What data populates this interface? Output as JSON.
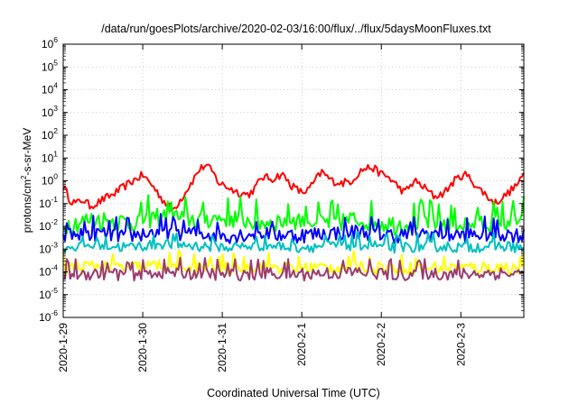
{
  "chart_data": {
    "type": "line",
    "title": "/data/run/goesPlots/archive/2020-02-03/16:00/flux/../flux/5daysMoonFluxes.txt",
    "xlabel": "Coordinated Universal Time (UTC)",
    "ylabel_parts": {
      "pre": "protons/cm",
      "sup": "2",
      "post": "-s-sr-MeV"
    },
    "yscale": "log",
    "ylim": [
      1e-06,
      1000000.0
    ],
    "y_ticks": [
      {
        "exp": "-6",
        "value": 1e-06
      },
      {
        "exp": "-5",
        "value": 1e-05
      },
      {
        "exp": "-4",
        "value": 0.0001
      },
      {
        "exp": "-3",
        "value": 0.001
      },
      {
        "exp": "-2",
        "value": 0.01
      },
      {
        "exp": "-1",
        "value": 0.1
      },
      {
        "exp": "0",
        "value": 1
      },
      {
        "exp": "1",
        "value": 10
      },
      {
        "exp": "2",
        "value": 100
      },
      {
        "exp": "3",
        "value": 1000
      },
      {
        "exp": "4",
        "value": 10000
      },
      {
        "exp": "5",
        "value": 100000
      },
      {
        "exp": "6",
        "value": 1000000
      }
    ],
    "y_tick_base": "10",
    "xlim": [
      "2020-01-29T00:00",
      "2020-02-03T19:00"
    ],
    "x_ticks": [
      "2020-1-29",
      "2020-1-30",
      "2020-1-31",
      "2020-2-1",
      "2020-2-2",
      "2020-2-3"
    ],
    "grid": true,
    "series": [
      {
        "color": "#ff0000",
        "x": [
          "2020-01-29T00:00",
          "2020-01-29T02:00",
          "2020-01-29T04:00",
          "2020-01-29T06:00",
          "2020-01-29T08:00",
          "2020-01-29T10:00",
          "2020-01-29T12:00",
          "2020-01-29T15:00",
          "2020-01-29T18:00",
          "2020-01-29T21:00",
          "2020-01-30T00:00",
          "2020-01-30T03:00",
          "2020-01-30T06:00",
          "2020-01-30T09:00",
          "2020-01-30T12:00",
          "2020-01-30T15:00",
          "2020-01-30T17:00",
          "2020-01-30T19:00",
          "2020-01-30T21:00",
          "2020-01-30T23:00",
          "2020-01-31T02:00",
          "2020-01-31T05:00",
          "2020-01-31T08:00",
          "2020-01-31T10:00",
          "2020-01-31T12:00",
          "2020-01-31T15:00",
          "2020-01-31T18:00",
          "2020-01-31T21:00",
          "2020-02-01T00:00",
          "2020-02-01T02:00",
          "2020-02-01T04:00",
          "2020-02-01T06:00",
          "2020-02-01T09:00",
          "2020-02-01T12:00",
          "2020-02-01T15:00",
          "2020-02-01T18:00",
          "2020-02-01T21:00",
          "2020-02-02T00:00",
          "2020-02-02T02:00",
          "2020-02-02T04:00",
          "2020-02-02T07:00",
          "2020-02-02T10:00",
          "2020-02-02T13:00",
          "2020-02-02T16:00",
          "2020-02-02T19:00",
          "2020-02-02T22:00",
          "2020-02-03T01:00",
          "2020-02-03T03:00",
          "2020-02-03T05:00",
          "2020-02-03T07:00",
          "2020-02-03T10:00",
          "2020-02-03T13:00",
          "2020-02-03T16:00",
          "2020-02-03T18:00",
          "2020-02-03T19:00"
        ],
        "y": [
          0.6,
          0.15,
          0.1,
          0.15,
          0.08,
          0.1,
          0.15,
          0.25,
          0.5,
          1.0,
          1.8,
          0.6,
          0.15,
          0.05,
          0.2,
          1.0,
          3.0,
          5.0,
          2.5,
          0.8,
          0.5,
          0.3,
          0.25,
          0.5,
          1.5,
          1.2,
          2.0,
          0.6,
          0.3,
          0.4,
          1.0,
          2.5,
          1.0,
          0.8,
          1.0,
          3.0,
          4.0,
          2.0,
          1.5,
          0.8,
          0.3,
          1.0,
          0.5,
          0.2,
          0.3,
          1.0,
          2.0,
          1.2,
          0.5,
          0.3,
          0.1,
          0.2,
          0.5,
          1.0,
          2.0
        ],
        "noise": 0.18
      },
      {
        "color": "#00ff00",
        "x": [
          "2020-01-29T00:00",
          "2020-01-29T10:00",
          "2020-01-29T20:00",
          "2020-01-30T06:00",
          "2020-01-30T16:00",
          "2020-01-31T02:00",
          "2020-01-31T12:00",
          "2020-01-31T22:00",
          "2020-02-01T08:00",
          "2020-02-01T18:00",
          "2020-02-02T04:00",
          "2020-02-02T14:00",
          "2020-02-03T00:00",
          "2020-02-03T10:00",
          "2020-02-03T19:00"
        ],
        "y": [
          0.012,
          0.02,
          0.015,
          0.03,
          0.02,
          0.025,
          0.015,
          0.02,
          0.015,
          0.02,
          0.012,
          0.018,
          0.012,
          0.015,
          0.02
        ],
        "noise": 0.45
      },
      {
        "color": "#0000ff",
        "x": [
          "2020-01-29T00:00",
          "2020-01-29T10:00",
          "2020-01-29T20:00",
          "2020-01-30T06:00",
          "2020-01-30T16:00",
          "2020-01-31T02:00",
          "2020-01-31T12:00",
          "2020-01-31T22:00",
          "2020-02-01T08:00",
          "2020-02-01T18:00",
          "2020-02-02T04:00",
          "2020-02-02T14:00",
          "2020-02-03T00:00",
          "2020-02-03T10:00",
          "2020-02-03T19:00"
        ],
        "y": [
          0.004,
          0.005,
          0.004,
          0.006,
          0.005,
          0.004,
          0.005,
          0.004,
          0.005,
          0.006,
          0.004,
          0.005,
          0.004,
          0.005,
          0.004
        ],
        "noise": 0.35
      },
      {
        "color": "#00c0c0",
        "x": [
          "2020-01-29T00:00",
          "2020-01-29T10:00",
          "2020-01-29T20:00",
          "2020-01-30T06:00",
          "2020-01-30T16:00",
          "2020-01-31T02:00",
          "2020-01-31T12:00",
          "2020-01-31T22:00",
          "2020-02-01T08:00",
          "2020-02-01T18:00",
          "2020-02-02T04:00",
          "2020-02-02T14:00",
          "2020-02-03T00:00",
          "2020-02-03T10:00",
          "2020-02-03T19:00"
        ],
        "y": [
          0.0012,
          0.0015,
          0.0012,
          0.0018,
          0.0014,
          0.0012,
          0.0015,
          0.0012,
          0.0014,
          0.0016,
          0.0012,
          0.0014,
          0.0012,
          0.0014,
          0.0012
        ],
        "noise": 0.25
      },
      {
        "color": "#ffff00",
        "x": [
          "2020-01-29T00:00",
          "2020-01-29T10:00",
          "2020-01-29T20:00",
          "2020-01-30T06:00",
          "2020-01-30T16:00",
          "2020-01-31T02:00",
          "2020-01-31T12:00",
          "2020-01-31T22:00",
          "2020-02-01T08:00",
          "2020-02-01T18:00",
          "2020-02-02T04:00",
          "2020-02-02T14:00",
          "2020-02-03T00:00",
          "2020-02-03T10:00",
          "2020-02-03T19:00"
        ],
        "y": [
          0.00015,
          0.00018,
          0.00015,
          0.0002,
          0.00016,
          0.00015,
          0.00017,
          0.00015,
          0.00016,
          0.00018,
          0.00015,
          0.00016,
          0.00015,
          0.00016,
          0.00015
        ],
        "noise": 0.3
      },
      {
        "color": "#9a3a70",
        "x": [
          "2020-01-29T00:00",
          "2020-01-29T10:00",
          "2020-01-29T20:00",
          "2020-01-30T06:00",
          "2020-01-30T16:00",
          "2020-01-31T02:00",
          "2020-01-31T12:00",
          "2020-01-31T22:00",
          "2020-02-01T08:00",
          "2020-02-01T18:00",
          "2020-02-02T04:00",
          "2020-02-02T14:00",
          "2020-02-03T00:00",
          "2020-02-03T10:00",
          "2020-02-03T19:00"
        ],
        "y": [
          8e-05,
          9e-05,
          8e-05,
          0.0001,
          9e-05,
          8e-05,
          9e-05,
          8e-05,
          9e-05,
          0.0001,
          8e-05,
          9e-05,
          8e-05,
          9e-05,
          8e-05
        ],
        "noise": 0.3
      }
    ]
  }
}
